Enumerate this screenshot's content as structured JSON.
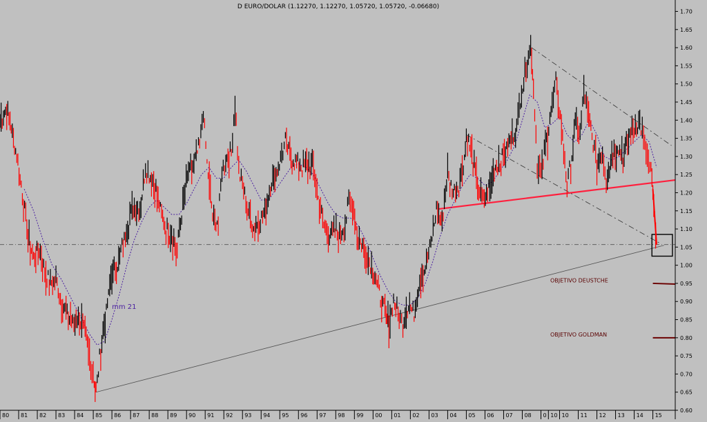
{
  "chart_data": {
    "type": "line",
    "title": "D EURO/DOLAR (1.12270, 1.12270, 1.05720, 1.05720, -0.06680)",
    "ylim": [
      0.6,
      1.72
    ],
    "yticks": [
      "0.60",
      "0.65",
      "0.70",
      "0.75",
      "0.80",
      "0.85",
      "0.90",
      "0.95",
      "1.00",
      "1.05",
      "1.10",
      "1.15",
      "1.20",
      "1.25",
      "1.30",
      "1.35",
      "1.40",
      "1.45",
      "1.50",
      "1.55",
      "1.60",
      "1.65",
      "1.70"
    ],
    "xlim": [
      1980,
      2016.2
    ],
    "xticks": [
      {
        "label": "80",
        "x": 1980
      },
      {
        "label": "81",
        "x": 1981
      },
      {
        "label": "82",
        "x": 1982
      },
      {
        "label": "83",
        "x": 1983
      },
      {
        "label": "84",
        "x": 1984
      },
      {
        "label": "85",
        "x": 1985
      },
      {
        "label": "86",
        "x": 1986
      },
      {
        "label": "87",
        "x": 1987
      },
      {
        "label": "88",
        "x": 1988
      },
      {
        "label": "89",
        "x": 1989
      },
      {
        "label": "90",
        "x": 1990
      },
      {
        "label": "91",
        "x": 1991
      },
      {
        "label": "92",
        "x": 1992
      },
      {
        "label": "93",
        "x": 1993
      },
      {
        "label": "94",
        "x": 1994
      },
      {
        "label": "95",
        "x": 1995
      },
      {
        "label": "96",
        "x": 1996
      },
      {
        "label": "97",
        "x": 1997
      },
      {
        "label": "98",
        "x": 1998
      },
      {
        "label": "99",
        "x": 1999
      },
      {
        "label": "00",
        "x": 2000
      },
      {
        "label": "01",
        "x": 2001
      },
      {
        "label": "02",
        "x": 2002
      },
      {
        "label": "03",
        "x": 2003
      },
      {
        "label": "04",
        "x": 2004
      },
      {
        "label": "05",
        "x": 2005
      },
      {
        "label": "06",
        "x": 2006
      },
      {
        "label": "07",
        "x": 2007
      },
      {
        "label": "08",
        "x": 2008
      },
      {
        "label": "0",
        "x": 2009
      },
      {
        "label": "10",
        "x": 2009.4
      },
      {
        "label": "10",
        "x": 2010
      },
      {
        "label": "11",
        "x": 2011
      },
      {
        "label": "12",
        "x": 2012
      },
      {
        "label": "13",
        "x": 2013
      },
      {
        "label": "14",
        "x": 2014
      },
      {
        "label": "15",
        "x": 2015
      }
    ],
    "series": [
      {
        "role": "price",
        "points": [
          [
            1980.0,
            1.4
          ],
          [
            1980.3,
            1.43
          ],
          [
            1980.6,
            1.38
          ],
          [
            1980.9,
            1.3
          ],
          [
            1981.2,
            1.2
          ],
          [
            1981.5,
            1.08
          ],
          [
            1981.8,
            1.02
          ],
          [
            1982.1,
            1.04
          ],
          [
            1982.4,
            0.98
          ],
          [
            1982.7,
            0.95
          ],
          [
            1983.0,
            0.96
          ],
          [
            1983.3,
            0.9
          ],
          [
            1983.6,
            0.86
          ],
          [
            1983.9,
            0.84
          ],
          [
            1984.2,
            0.86
          ],
          [
            1984.5,
            0.82
          ],
          [
            1984.8,
            0.75
          ],
          [
            1985.0,
            0.7
          ],
          [
            1985.15,
            0.65
          ],
          [
            1985.4,
            0.77
          ],
          [
            1985.7,
            0.87
          ],
          [
            1986.0,
            0.98
          ],
          [
            1986.3,
            1.0
          ],
          [
            1986.6,
            1.06
          ],
          [
            1986.9,
            1.12
          ],
          [
            1987.2,
            1.17
          ],
          [
            1987.5,
            1.15
          ],
          [
            1987.8,
            1.27
          ],
          [
            1988.0,
            1.25
          ],
          [
            1988.3,
            1.22
          ],
          [
            1988.6,
            1.15
          ],
          [
            1988.9,
            1.1
          ],
          [
            1989.2,
            1.08
          ],
          [
            1989.5,
            1.04
          ],
          [
            1989.8,
            1.17
          ],
          [
            1990.1,
            1.25
          ],
          [
            1990.4,
            1.28
          ],
          [
            1990.7,
            1.33
          ],
          [
            1990.9,
            1.42
          ],
          [
            1991.1,
            1.28
          ],
          [
            1991.4,
            1.14
          ],
          [
            1991.7,
            1.12
          ],
          [
            1991.9,
            1.26
          ],
          [
            1992.1,
            1.29
          ],
          [
            1992.4,
            1.31
          ],
          [
            1992.6,
            1.45
          ],
          [
            1992.8,
            1.26
          ],
          [
            1993.0,
            1.22
          ],
          [
            1993.3,
            1.15
          ],
          [
            1993.6,
            1.1
          ],
          [
            1993.9,
            1.12
          ],
          [
            1994.2,
            1.15
          ],
          [
            1994.5,
            1.22
          ],
          [
            1994.8,
            1.25
          ],
          [
            1995.1,
            1.3
          ],
          [
            1995.3,
            1.34
          ],
          [
            1995.6,
            1.3
          ],
          [
            1995.9,
            1.28
          ],
          [
            1996.2,
            1.27
          ],
          [
            1996.5,
            1.28
          ],
          [
            1996.8,
            1.27
          ],
          [
            1997.0,
            1.2
          ],
          [
            1997.3,
            1.12
          ],
          [
            1997.6,
            1.08
          ],
          [
            1997.9,
            1.1
          ],
          [
            1998.2,
            1.08
          ],
          [
            1998.5,
            1.11
          ],
          [
            1998.7,
            1.18
          ],
          [
            1998.9,
            1.16
          ],
          [
            1999.2,
            1.07
          ],
          [
            1999.5,
            1.05
          ],
          [
            1999.8,
            1.01
          ],
          [
            2000.1,
            0.97
          ],
          [
            2000.4,
            0.91
          ],
          [
            2000.7,
            0.86
          ],
          [
            2000.85,
            0.83
          ],
          [
            2001.1,
            0.9
          ],
          [
            2001.4,
            0.86
          ],
          [
            2001.6,
            0.84
          ],
          [
            2001.9,
            0.89
          ],
          [
            2002.2,
            0.87
          ],
          [
            2002.5,
            0.96
          ],
          [
            2002.8,
            0.99
          ],
          [
            2003.1,
            1.06
          ],
          [
            2003.4,
            1.15
          ],
          [
            2003.7,
            1.12
          ],
          [
            2004.0,
            1.25
          ],
          [
            2004.3,
            1.2
          ],
          [
            2004.6,
            1.22
          ],
          [
            2004.9,
            1.3
          ],
          [
            2005.0,
            1.36
          ],
          [
            2005.3,
            1.3
          ],
          [
            2005.6,
            1.22
          ],
          [
            2005.9,
            1.18
          ],
          [
            2006.2,
            1.21
          ],
          [
            2006.5,
            1.27
          ],
          [
            2006.8,
            1.28
          ],
          [
            2007.1,
            1.31
          ],
          [
            2007.4,
            1.35
          ],
          [
            2007.7,
            1.38
          ],
          [
            2007.9,
            1.46
          ],
          [
            2008.2,
            1.55
          ],
          [
            2008.45,
            1.6
          ],
          [
            2008.6,
            1.5
          ],
          [
            2008.8,
            1.28
          ],
          [
            2009.0,
            1.25
          ],
          [
            2009.3,
            1.34
          ],
          [
            2009.6,
            1.45
          ],
          [
            2009.8,
            1.5
          ],
          [
            2010.1,
            1.38
          ],
          [
            2010.4,
            1.22
          ],
          [
            2010.6,
            1.28
          ],
          [
            2010.9,
            1.4
          ],
          [
            2011.1,
            1.36
          ],
          [
            2011.3,
            1.48
          ],
          [
            2011.5,
            1.42
          ],
          [
            2011.8,
            1.34
          ],
          [
            2012.0,
            1.28
          ],
          [
            2012.3,
            1.32
          ],
          [
            2012.5,
            1.23
          ],
          [
            2012.8,
            1.3
          ],
          [
            2013.1,
            1.33
          ],
          [
            2013.4,
            1.3
          ],
          [
            2013.7,
            1.35
          ],
          [
            2014.0,
            1.38
          ],
          [
            2014.3,
            1.39
          ],
          [
            2014.5,
            1.35
          ],
          [
            2014.7,
            1.3
          ],
          [
            2014.9,
            1.25
          ],
          [
            2015.0,
            1.2
          ],
          [
            2015.1,
            1.12
          ],
          [
            2015.2,
            1.057
          ]
        ]
      },
      {
        "role": "moving-average",
        "name": "mm 21",
        "points": [
          [
            1981.3,
            1.21
          ],
          [
            1981.8,
            1.15
          ],
          [
            1982.3,
            1.07
          ],
          [
            1982.8,
            1.0
          ],
          [
            1983.3,
            0.96
          ],
          [
            1983.8,
            0.91
          ],
          [
            1984.3,
            0.86
          ],
          [
            1984.8,
            0.81
          ],
          [
            1985.2,
            0.78
          ],
          [
            1985.6,
            0.79
          ],
          [
            1986.0,
            0.85
          ],
          [
            1986.4,
            0.92
          ],
          [
            1986.8,
            1.0
          ],
          [
            1987.2,
            1.07
          ],
          [
            1987.6,
            1.12
          ],
          [
            1988.0,
            1.16
          ],
          [
            1988.4,
            1.18
          ],
          [
            1988.8,
            1.16
          ],
          [
            1989.2,
            1.14
          ],
          [
            1989.6,
            1.14
          ],
          [
            1990.0,
            1.17
          ],
          [
            1990.4,
            1.21
          ],
          [
            1990.8,
            1.25
          ],
          [
            1991.2,
            1.27
          ],
          [
            1991.6,
            1.24
          ],
          [
            1992.0,
            1.24
          ],
          [
            1992.4,
            1.27
          ],
          [
            1992.8,
            1.29
          ],
          [
            1993.2,
            1.26
          ],
          [
            1993.6,
            1.22
          ],
          [
            1994.0,
            1.18
          ],
          [
            1994.4,
            1.18
          ],
          [
            1994.8,
            1.21
          ],
          [
            1995.2,
            1.24
          ],
          [
            1995.6,
            1.27
          ],
          [
            1996.0,
            1.28
          ],
          [
            1996.4,
            1.27
          ],
          [
            1996.8,
            1.25
          ],
          [
            1997.2,
            1.21
          ],
          [
            1997.6,
            1.17
          ],
          [
            1998.0,
            1.14
          ],
          [
            1998.4,
            1.13
          ],
          [
            1998.8,
            1.13
          ],
          [
            1999.2,
            1.11
          ],
          [
            1999.6,
            1.07
          ],
          [
            2000.0,
            1.02
          ],
          [
            2000.4,
            0.97
          ],
          [
            2000.8,
            0.93
          ],
          [
            2001.2,
            0.9
          ],
          [
            2001.6,
            0.89
          ],
          [
            2002.0,
            0.89
          ],
          [
            2002.4,
            0.91
          ],
          [
            2002.8,
            0.95
          ],
          [
            2003.2,
            1.01
          ],
          [
            2003.6,
            1.08
          ],
          [
            2004.0,
            1.14
          ],
          [
            2004.4,
            1.18
          ],
          [
            2004.8,
            1.22
          ],
          [
            2005.2,
            1.25
          ],
          [
            2005.6,
            1.24
          ],
          [
            2006.0,
            1.22
          ],
          [
            2006.4,
            1.23
          ],
          [
            2006.8,
            1.26
          ],
          [
            2007.2,
            1.29
          ],
          [
            2007.6,
            1.33
          ],
          [
            2008.0,
            1.4
          ],
          [
            2008.4,
            1.47
          ],
          [
            2008.8,
            1.45
          ],
          [
            2009.2,
            1.38
          ],
          [
            2009.6,
            1.39
          ],
          [
            2010.0,
            1.41
          ],
          [
            2010.4,
            1.36
          ],
          [
            2010.8,
            1.34
          ],
          [
            2011.2,
            1.36
          ],
          [
            2011.6,
            1.4
          ],
          [
            2012.0,
            1.36
          ],
          [
            2012.4,
            1.3
          ],
          [
            2012.8,
            1.29
          ],
          [
            2013.2,
            1.3
          ],
          [
            2013.6,
            1.32
          ],
          [
            2014.0,
            1.34
          ],
          [
            2014.4,
            1.36
          ],
          [
            2014.8,
            1.34
          ],
          [
            2015.2,
            1.27
          ]
        ]
      }
    ],
    "annotations": [
      {
        "text": "mm 21",
        "x": 1986.0,
        "y": 0.88
      },
      {
        "text": "OBJETIVO DEUSTCHE",
        "x": 2009.5,
        "y": 0.953
      },
      {
        "text": "OBJETIVO GOLDMAN",
        "x": 2009.5,
        "y": 0.803
      }
    ],
    "reference_lines": [
      {
        "role": "current-price",
        "y": 1.057
      },
      {
        "role": "support-long",
        "from": [
          1985.15,
          0.65
        ],
        "to": [
          2015.6,
          1.055
        ]
      },
      {
        "role": "neckline",
        "from": [
          2003.5,
          1.155
        ],
        "to": [
          2016.2,
          1.235
        ]
      },
      {
        "role": "channel-upper",
        "from": [
          2008.5,
          1.6
        ],
        "to": [
          2016.0,
          1.33
        ]
      },
      {
        "role": "channel-lower",
        "from": [
          2005.0,
          1.36
        ],
        "to": [
          2015.4,
          1.06
        ]
      },
      {
        "role": "target-deustche",
        "from": [
          2015.0,
          0.95
        ],
        "to": [
          2016.2,
          0.948
        ]
      },
      {
        "role": "target-goldman",
        "from": [
          2015.0,
          0.8
        ],
        "to": [
          2016.2,
          0.8
        ]
      }
    ],
    "highlight_box": {
      "x0": 2014.95,
      "x1": 2016.05,
      "y0": 1.025,
      "y1": 1.085
    },
    "grid": false
  }
}
